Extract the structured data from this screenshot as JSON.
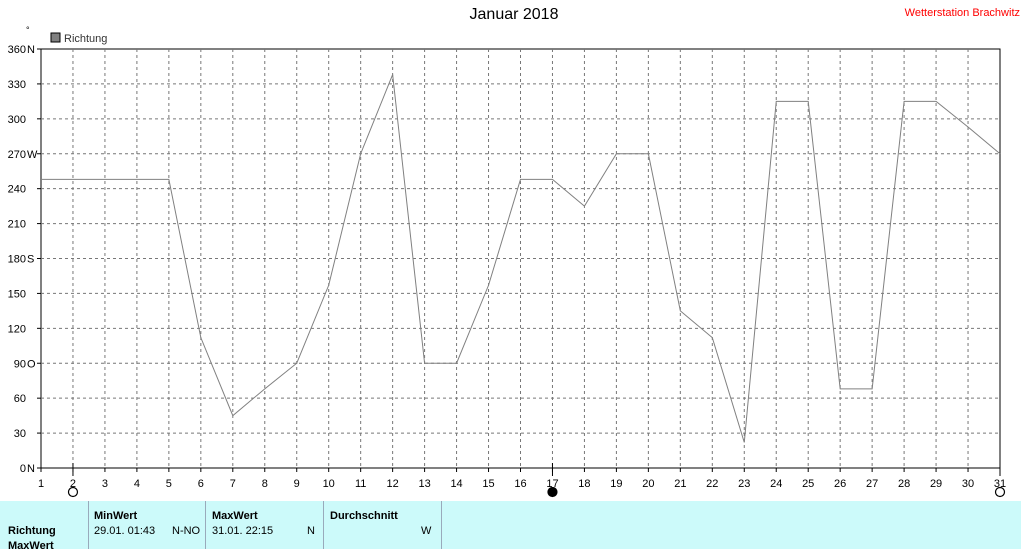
{
  "header": {
    "title": "Januar 2018",
    "station": "Wetterstation Brachwitz"
  },
  "chart_data": {
    "type": "line",
    "title": "Januar 2018",
    "legend": "Richtung",
    "legend_position": "top-left",
    "unit_mark": "°",
    "grid": true,
    "x": [
      1,
      2,
      3,
      4,
      5,
      6,
      7,
      8,
      9,
      10,
      11,
      12,
      13,
      14,
      15,
      16,
      17,
      18,
      19,
      20,
      21,
      22,
      23,
      24,
      25,
      26,
      27,
      28,
      29,
      30,
      31
    ],
    "xlim": [
      1,
      31
    ],
    "ylim": [
      0,
      360
    ],
    "y_ticks": [
      {
        "value": 0,
        "label": "0",
        "dir": "N"
      },
      {
        "value": 30,
        "label": "30",
        "dir": ""
      },
      {
        "value": 60,
        "label": "60",
        "dir": ""
      },
      {
        "value": 90,
        "label": "90",
        "dir": "O"
      },
      {
        "value": 120,
        "label": "120",
        "dir": ""
      },
      {
        "value": 150,
        "label": "150",
        "dir": ""
      },
      {
        "value": 180,
        "label": "180",
        "dir": "S"
      },
      {
        "value": 210,
        "label": "210",
        "dir": ""
      },
      {
        "value": 240,
        "label": "240",
        "dir": ""
      },
      {
        "value": 270,
        "label": "270",
        "dir": "W"
      },
      {
        "value": 300,
        "label": "300",
        "dir": ""
      },
      {
        "value": 330,
        "label": "330",
        "dir": ""
      },
      {
        "value": 360,
        "label": "360",
        "dir": "N"
      }
    ],
    "series": [
      {
        "name": "Richtung",
        "color": "#808080",
        "values": [
          248,
          248,
          248,
          248,
          248,
          112,
          45,
          68,
          90,
          157,
          270,
          338,
          90,
          90,
          157,
          248,
          248,
          225,
          270,
          270,
          135,
          112,
          22,
          315,
          315,
          68,
          68,
          315,
          315,
          293,
          270
        ]
      }
    ],
    "moon_phases": [
      {
        "day": 2,
        "phase": "full-moon"
      },
      {
        "day": 17,
        "phase": "new-moon"
      },
      {
        "day": 31,
        "phase": "full-moon"
      }
    ]
  },
  "stats": {
    "row_label": "Richtung",
    "row_label_2": "MaxWert",
    "min": {
      "header": "MinWert",
      "time": "29.01.  01:43",
      "dir": "N-NO"
    },
    "max": {
      "header": "MaxWert",
      "time": "31.01.  22:15",
      "dir": "N"
    },
    "avg": {
      "header": "Durchschnitt",
      "dir": "W"
    }
  }
}
